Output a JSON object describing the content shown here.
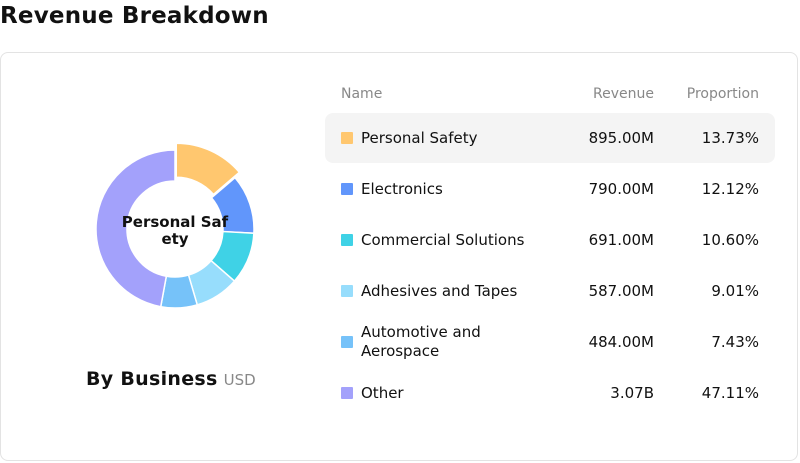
{
  "page": {
    "title": "Revenue Breakdown"
  },
  "chart": {
    "center_label": "Personal Safety",
    "subtitle": "By Business",
    "unit": "USD"
  },
  "table": {
    "headers": {
      "name": "Name",
      "revenue": "Revenue",
      "proportion": "Proportion"
    },
    "highlighted_row": 0
  },
  "chart_data": {
    "type": "pie",
    "style": "donut",
    "title": "By Business",
    "unit": "USD",
    "categories": [
      "Personal Safety",
      "Electronics",
      "Commercial Solutions",
      "Adhesives and Tapes",
      "Automotive and Aerospace",
      "Other"
    ],
    "revenue_labels": [
      "895.00M",
      "790.00M",
      "691.00M",
      "587.00M",
      "484.00M",
      "3.07B"
    ],
    "proportion_labels": [
      "13.73%",
      "12.12%",
      "10.60%",
      "9.01%",
      "7.43%",
      "47.11%"
    ],
    "values": [
      13.73,
      12.12,
      10.6,
      9.01,
      7.43,
      47.11
    ],
    "colors": [
      "#ffc76f",
      "#6196fb",
      "#3fd2e6",
      "#97ddfc",
      "#76c2f9",
      "#a3a1fb"
    ],
    "highlighted": "Personal Safety"
  }
}
